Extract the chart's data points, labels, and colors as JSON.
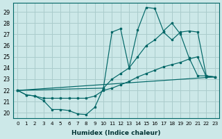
{
  "xlabel": "Humidex (Indice chaleur)",
  "background_color": "#cce8e8",
  "grid_color": "#aacccc",
  "line_color": "#006666",
  "xlim": [
    -0.5,
    23.5
  ],
  "ylim": [
    19.5,
    29.8
  ],
  "yticks": [
    20,
    21,
    22,
    23,
    24,
    25,
    26,
    27,
    28,
    29
  ],
  "xticks": [
    0,
    1,
    2,
    3,
    4,
    5,
    6,
    7,
    8,
    9,
    10,
    11,
    12,
    13,
    14,
    15,
    16,
    17,
    18,
    19,
    20,
    21,
    22,
    23
  ],
  "series1_x": [
    0,
    1,
    2,
    3,
    4,
    5,
    6,
    7,
    8,
    9,
    10,
    11,
    12,
    13,
    14,
    15,
    16,
    17,
    18,
    19,
    20,
    21,
    22,
    23
  ],
  "series1_y": [
    22.0,
    21.6,
    21.5,
    21.1,
    20.3,
    20.3,
    20.2,
    19.9,
    19.85,
    20.5,
    22.2,
    27.2,
    27.5,
    24.0,
    27.4,
    29.4,
    29.3,
    27.3,
    28.0,
    27.0,
    24.9,
    23.3,
    23.3,
    23.2
  ],
  "series2_x": [
    0,
    10,
    11,
    12,
    13,
    14,
    15,
    16,
    17,
    18,
    19,
    20,
    21,
    22,
    23
  ],
  "series2_y": [
    22.0,
    22.2,
    23.0,
    23.5,
    24.0,
    25.0,
    26.0,
    26.5,
    27.2,
    26.5,
    27.2,
    27.3,
    27.2,
    23.3,
    23.2
  ],
  "series3_x": [
    0,
    1,
    2,
    3,
    4,
    5,
    6,
    7,
    8,
    9,
    10,
    11,
    12,
    13,
    14,
    15,
    16,
    17,
    18,
    19,
    20,
    21,
    22,
    23
  ],
  "series3_y": [
    22.0,
    21.6,
    21.5,
    21.3,
    21.3,
    21.3,
    21.3,
    21.3,
    21.3,
    21.5,
    22.0,
    22.2,
    22.5,
    22.8,
    23.2,
    23.5,
    23.8,
    24.1,
    24.3,
    24.5,
    24.8,
    25.0,
    23.2,
    23.2
  ],
  "series4_x": [
    0,
    23
  ],
  "series4_y": [
    22.0,
    23.2
  ]
}
